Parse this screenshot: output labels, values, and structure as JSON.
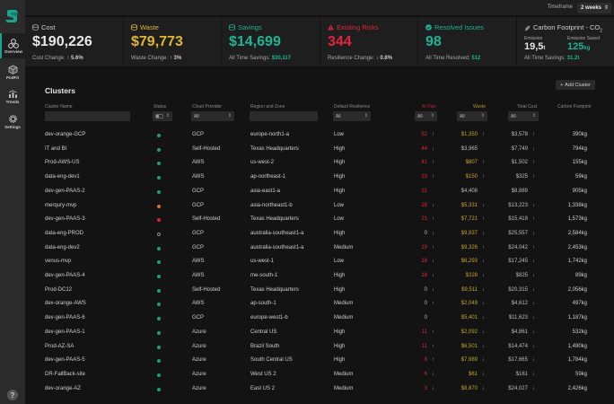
{
  "sidebar": {
    "items": [
      {
        "label": "Overview",
        "icon": "overview-icon",
        "active": true
      },
      {
        "label": "PodFit",
        "icon": "cube-icon",
        "active": false
      },
      {
        "label": "Trends",
        "icon": "trends-icon",
        "active": false
      },
      {
        "label": "Settings",
        "icon": "gear-icon",
        "active": false
      }
    ],
    "help": "?"
  },
  "topbar": {
    "timeframe_label": "Timeframe",
    "timeframe_value": "2 weeks"
  },
  "kpis": {
    "cost": {
      "title": "Cost",
      "value": "$190,226",
      "sub_label": "Cost Change:",
      "sub_arrow": "↑",
      "sub_value": "5.6%"
    },
    "waste": {
      "title": "Waste",
      "value": "$79,773",
      "sub_label": "Waste Change:",
      "sub_arrow": "↑",
      "sub_value": "3%"
    },
    "savings": {
      "title": "Savings",
      "value": "$14,699",
      "sub_label": "All Time Savings:",
      "sub_value": "$30,117"
    },
    "risks": {
      "title": "Existing Risks",
      "value": "344",
      "sub_label": "Resilience Change:",
      "sub_arrow": "↓",
      "sub_value": "0.8%"
    },
    "resolved": {
      "title": "Resolved Issues",
      "value": "98",
      "sub_label": "All Time Resolved:",
      "sub_value": "512"
    },
    "carbon": {
      "title": "Carbon Footprint - CO",
      "title_sub": "2",
      "emission_label": "Emission",
      "emission_value": "19,5",
      "emission_unit": "t",
      "saved_label": "Emission Saved",
      "saved_value": "125",
      "saved_unit": "kg",
      "sub_label": "All Time Savings:",
      "sub_value": "31.2t"
    }
  },
  "clusters": {
    "title": "Clusters",
    "add_button": "Add Cluster",
    "columns": {
      "name": "Cluster Name",
      "status": "Status",
      "provider": "Cloud Provider",
      "region": "Region and Zone",
      "resilience": "Default Resilience",
      "at_risk": "At Risk",
      "waste": "Waste",
      "total_cost": "Total Cost",
      "carbon": "Carbon Footprint"
    },
    "filters": {
      "name": "",
      "status": "",
      "provider": "All",
      "region": "",
      "resilience": "All",
      "at_risk": "All",
      "waste": "All",
      "total_cost": "All"
    },
    "colors": {
      "ok": "#1aa07f",
      "warn": "#d8731c",
      "critical": "#d7263d",
      "unknown": "#888888"
    },
    "rows": [
      {
        "name": "dev-orange-GCP",
        "status": "ok",
        "provider": "GCP",
        "region": "europe-north1-a",
        "resilience": "Low",
        "at_risk": "52",
        "risk_arrow": "↑",
        "waste": "$1,350",
        "waste_arrow": "↑",
        "waste_hl": true,
        "cost": "$3,578",
        "cost_arrow": "↑",
        "carbon": "390kg"
      },
      {
        "name": "IT and BI",
        "status": "ok",
        "provider": "Self-Hosted",
        "region": "Texas Headquarters",
        "resilience": "High",
        "at_risk": "44",
        "risk_arrow": "↓",
        "waste": "$3,965",
        "waste_arrow": "",
        "waste_hl": false,
        "cost": "$7,749",
        "cost_arrow": "↓",
        "carbon": "794kg"
      },
      {
        "name": "Prod-AWS-US",
        "status": "ok",
        "provider": "AWS",
        "region": "us-west-2",
        "resilience": "High",
        "at_risk": "41",
        "risk_arrow": "↑",
        "waste": "$807",
        "waste_arrow": "↑",
        "waste_hl": true,
        "cost": "$1,502",
        "cost_arrow": "↑",
        "carbon": "155kg"
      },
      {
        "name": "data-eng-dev1",
        "status": "ok",
        "provider": "AWS",
        "region": "ap-northeast-1",
        "resilience": "High",
        "at_risk": "33",
        "risk_arrow": "↑",
        "waste": "$150",
        "waste_arrow": "↑",
        "waste_hl": true,
        "cost": "$325",
        "cost_arrow": "↑",
        "carbon": "59kg"
      },
      {
        "name": "dev-gen-PAAS-2",
        "status": "ok",
        "provider": "GCP",
        "region": "asia-east1-a",
        "resilience": "High",
        "at_risk": "31",
        "risk_arrow": "",
        "waste": "$4,408",
        "waste_arrow": "",
        "waste_hl": false,
        "cost": "$8,889",
        "cost_arrow": "",
        "carbon": "905kg"
      },
      {
        "name": "merqury-mvp",
        "status": "warn",
        "provider": "GCP",
        "region": "asia-northeast1-b",
        "resilience": "Low",
        "at_risk": "28",
        "risk_arrow": "↓",
        "waste": "$5,331",
        "waste_arrow": "↓",
        "waste_hl": true,
        "cost": "$13,223",
        "cost_arrow": "↓",
        "carbon": "1,338kg"
      },
      {
        "name": "dev-gen-PAAS-3",
        "status": "critical",
        "provider": "Self-Hosted",
        "region": "Texas Headquarters",
        "resilience": "Low",
        "at_risk": "21",
        "risk_arrow": "↑",
        "waste": "$7,721",
        "waste_arrow": "↑",
        "waste_hl": true,
        "cost": "$15,418",
        "cost_arrow": "↑",
        "carbon": "1,573kg"
      },
      {
        "name": "data-eng-PROD",
        "status": "unknown",
        "provider": "GCP",
        "region": "australia-southeast1-a",
        "resilience": "High",
        "at_risk": "0",
        "risk_arrow": "↓",
        "waste": "$9,937",
        "waste_arrow": "↓",
        "waste_hl": true,
        "cost": "$25,557",
        "cost_arrow": "↓",
        "carbon": "2,584kg"
      },
      {
        "name": "data-eng-dev2",
        "status": "ok",
        "provider": "GCP",
        "region": "australia-southeast1-a",
        "resilience": "Medium",
        "at_risk": "19",
        "risk_arrow": "↑",
        "waste": "$9,326",
        "waste_arrow": "↑",
        "waste_hl": true,
        "cost": "$24,042",
        "cost_arrow": "↑",
        "carbon": "2,453kg"
      },
      {
        "name": "venus-mvp",
        "status": "ok",
        "provider": "AWS",
        "region": "us-west-1",
        "resilience": "Low",
        "at_risk": "18",
        "risk_arrow": "↓",
        "waste": "$6,293",
        "waste_arrow": "↓",
        "waste_hl": true,
        "cost": "$17,245",
        "cost_arrow": "↓",
        "carbon": "1,742kg"
      },
      {
        "name": "dev-gen-PAAS-4",
        "status": "ok",
        "provider": "AWS",
        "region": "me-south-1",
        "resilience": "High",
        "at_risk": "18",
        "risk_arrow": "↓",
        "waste": "$328",
        "waste_arrow": "↓",
        "waste_hl": true,
        "cost": "$825",
        "cost_arrow": "↓",
        "carbon": "89kg"
      },
      {
        "name": "Prod-DC12",
        "status": "ok",
        "provider": "Self-Hosted",
        "region": "Texas Headquarters",
        "resilience": "High",
        "at_risk": "0",
        "risk_arrow": "↓",
        "waste": "$9,511",
        "waste_arrow": "↓",
        "waste_hl": true,
        "cost": "$20,315",
        "cost_arrow": "↓",
        "carbon": "2,056kg"
      },
      {
        "name": "dev-orange-AWS",
        "status": "ok",
        "provider": "AWS",
        "region": "ap-south-1",
        "resilience": "Medium",
        "at_risk": "0",
        "risk_arrow": "↑",
        "waste": "$2,049",
        "waste_arrow": "↓",
        "waste_hl": true,
        "cost": "$4,612",
        "cost_arrow": "↓",
        "carbon": "497kg"
      },
      {
        "name": "dev-gen-PAAS-6",
        "status": "ok",
        "provider": "GCP",
        "region": "europe-west1-b",
        "resilience": "Medium",
        "at_risk": "0",
        "risk_arrow": "",
        "waste": "$5,401",
        "waste_arrow": "↓",
        "waste_hl": true,
        "cost": "$11,623",
        "cost_arrow": "↓",
        "carbon": "1,187kg"
      },
      {
        "name": "dev-gen-PAAS-1",
        "status": "ok",
        "provider": "Azure",
        "region": "Central US",
        "resilience": "High",
        "at_risk": "11",
        "risk_arrow": "↑",
        "waste": "$2,092",
        "waste_arrow": "↓",
        "waste_hl": true,
        "cost": "$4,861",
        "cost_arrow": "↓",
        "carbon": "532kg"
      },
      {
        "name": "Prod-AZ-SA",
        "status": "ok",
        "provider": "Azure",
        "region": "Brazil South",
        "resilience": "High",
        "at_risk": "11",
        "risk_arrow": "↑",
        "waste": "$6,501",
        "waste_arrow": "↓",
        "waste_hl": true,
        "cost": "$14,474",
        "cost_arrow": "↓",
        "carbon": "1,490kg"
      },
      {
        "name": "dev-gen-PAAS-5",
        "status": "ok",
        "provider": "Azure",
        "region": "South Central US",
        "resilience": "High",
        "at_risk": "8",
        "risk_arrow": "↑",
        "waste": "$7,989",
        "waste_arrow": "↓",
        "waste_hl": true,
        "cost": "$17,665",
        "cost_arrow": "↓",
        "carbon": "1,784kg"
      },
      {
        "name": "DR-FallBack-site",
        "status": "ok",
        "provider": "Azure",
        "region": "West US 2",
        "resilience": "Medium",
        "at_risk": "6",
        "risk_arrow": "↓",
        "waste": "$61",
        "waste_arrow": "↓",
        "waste_hl": true,
        "cost": "$161",
        "cost_arrow": "↓",
        "carbon": "59kg"
      },
      {
        "name": "dev-orange-AZ",
        "status": "ok",
        "provider": "Azure",
        "region": "East US 2",
        "resilience": "Medium",
        "at_risk": "3",
        "risk_arrow": "↓",
        "waste": "$8,870",
        "waste_arrow": "↓",
        "waste_hl": true,
        "cost": "$24,027",
        "cost_arrow": "↓",
        "carbon": "2,426kg"
      }
    ]
  }
}
